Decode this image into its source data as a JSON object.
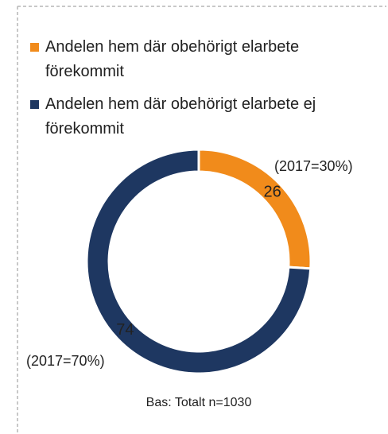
{
  "chart_data": {
    "type": "donut",
    "categories": [
      "Andelen hem där obehörigt elarbete förekommit",
      "Andelen hem där obehörigt elarbete ej förekommit"
    ],
    "values": [
      26,
      74
    ],
    "colors": [
      "#f18b1b",
      "#1e3761"
    ],
    "annotations": [
      "(2017=30%)",
      "(2017=70%)"
    ],
    "footnote": "Bas: Totalt n=1030"
  }
}
